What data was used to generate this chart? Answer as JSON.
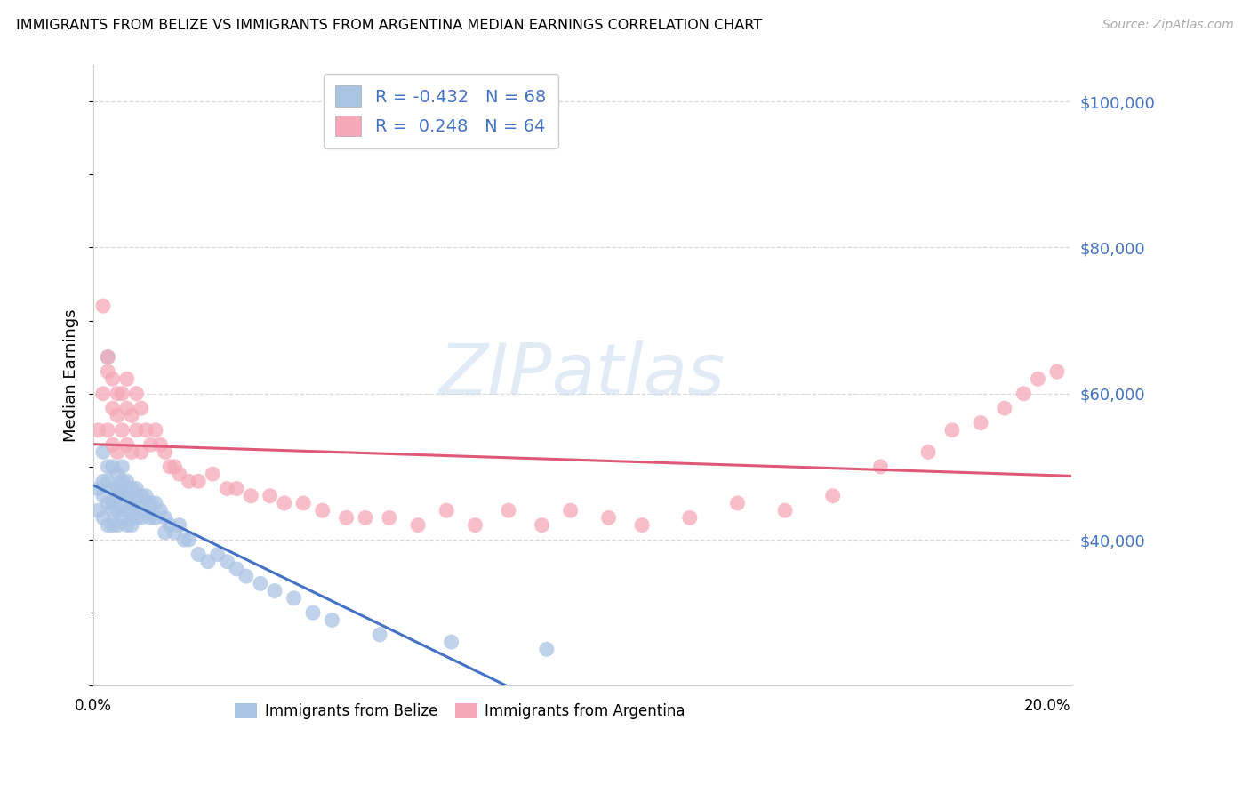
{
  "title": "IMMIGRANTS FROM BELIZE VS IMMIGRANTS FROM ARGENTINA MEDIAN EARNINGS CORRELATION CHART",
  "source": "Source: ZipAtlas.com",
  "ylabel": "Median Earnings",
  "xlim": [
    0.0,
    0.205
  ],
  "ylim": [
    20000,
    105000
  ],
  "yticks": [
    40000,
    60000,
    80000,
    100000
  ],
  "ytick_labels": [
    "$40,000",
    "$60,000",
    "$80,000",
    "$100,000"
  ],
  "xticks": [
    0.0,
    0.05,
    0.1,
    0.15,
    0.2
  ],
  "xtick_labels": [
    "0.0%",
    "",
    "",
    "",
    "20.0%"
  ],
  "background_color": "#ffffff",
  "grid_color": "#d8d8d8",
  "belize_color": "#aac4e4",
  "argentina_color": "#f5a8b8",
  "belize_line_color": "#4472c4",
  "argentina_line_color": "#e05878",
  "label_color": "#4472c4",
  "R_belize": -0.432,
  "N_belize": 68,
  "R_argentina": 0.248,
  "N_argentina": 64,
  "belize_label": "Immigrants from Belize",
  "argentina_label": "Immigrants from Argentina",
  "belize_scatter_x": [
    0.001,
    0.001,
    0.002,
    0.002,
    0.002,
    0.002,
    0.003,
    0.003,
    0.003,
    0.003,
    0.003,
    0.004,
    0.004,
    0.004,
    0.004,
    0.004,
    0.005,
    0.005,
    0.005,
    0.005,
    0.005,
    0.006,
    0.006,
    0.006,
    0.006,
    0.006,
    0.007,
    0.007,
    0.007,
    0.007,
    0.008,
    0.008,
    0.008,
    0.008,
    0.009,
    0.009,
    0.009,
    0.01,
    0.01,
    0.01,
    0.011,
    0.011,
    0.012,
    0.012,
    0.013,
    0.013,
    0.014,
    0.015,
    0.015,
    0.016,
    0.017,
    0.018,
    0.019,
    0.02,
    0.022,
    0.024,
    0.026,
    0.028,
    0.03,
    0.032,
    0.035,
    0.038,
    0.042,
    0.046,
    0.05,
    0.06,
    0.075,
    0.095
  ],
  "belize_scatter_y": [
    47000,
    44000,
    48000,
    46000,
    52000,
    43000,
    50000,
    48000,
    45000,
    42000,
    65000,
    50000,
    47000,
    45000,
    44000,
    42000,
    49000,
    47000,
    46000,
    44000,
    42000,
    50000,
    48000,
    46000,
    45000,
    43000,
    48000,
    46000,
    44000,
    42000,
    47000,
    45000,
    44000,
    42000,
    47000,
    45000,
    43000,
    46000,
    45000,
    43000,
    46000,
    44000,
    45000,
    43000,
    45000,
    43000,
    44000,
    43000,
    41000,
    42000,
    41000,
    42000,
    40000,
    40000,
    38000,
    37000,
    38000,
    37000,
    36000,
    35000,
    34000,
    33000,
    32000,
    30000,
    29000,
    27000,
    26000,
    25000
  ],
  "argentina_scatter_x": [
    0.001,
    0.002,
    0.002,
    0.003,
    0.003,
    0.003,
    0.004,
    0.004,
    0.004,
    0.005,
    0.005,
    0.005,
    0.006,
    0.006,
    0.007,
    0.007,
    0.007,
    0.008,
    0.008,
    0.009,
    0.009,
    0.01,
    0.01,
    0.011,
    0.012,
    0.013,
    0.014,
    0.015,
    0.016,
    0.017,
    0.018,
    0.02,
    0.022,
    0.025,
    0.028,
    0.03,
    0.033,
    0.037,
    0.04,
    0.044,
    0.048,
    0.053,
    0.057,
    0.062,
    0.068,
    0.074,
    0.08,
    0.087,
    0.094,
    0.1,
    0.108,
    0.115,
    0.125,
    0.135,
    0.145,
    0.155,
    0.165,
    0.175,
    0.18,
    0.186,
    0.191,
    0.195,
    0.198,
    0.202
  ],
  "argentina_scatter_y": [
    55000,
    72000,
    60000,
    65000,
    63000,
    55000,
    62000,
    58000,
    53000,
    60000,
    57000,
    52000,
    60000,
    55000,
    62000,
    58000,
    53000,
    57000,
    52000,
    60000,
    55000,
    58000,
    52000,
    55000,
    53000,
    55000,
    53000,
    52000,
    50000,
    50000,
    49000,
    48000,
    48000,
    49000,
    47000,
    47000,
    46000,
    46000,
    45000,
    45000,
    44000,
    43000,
    43000,
    43000,
    42000,
    44000,
    42000,
    44000,
    42000,
    44000,
    43000,
    42000,
    43000,
    45000,
    44000,
    46000,
    50000,
    52000,
    55000,
    56000,
    58000,
    60000,
    62000,
    63000
  ]
}
